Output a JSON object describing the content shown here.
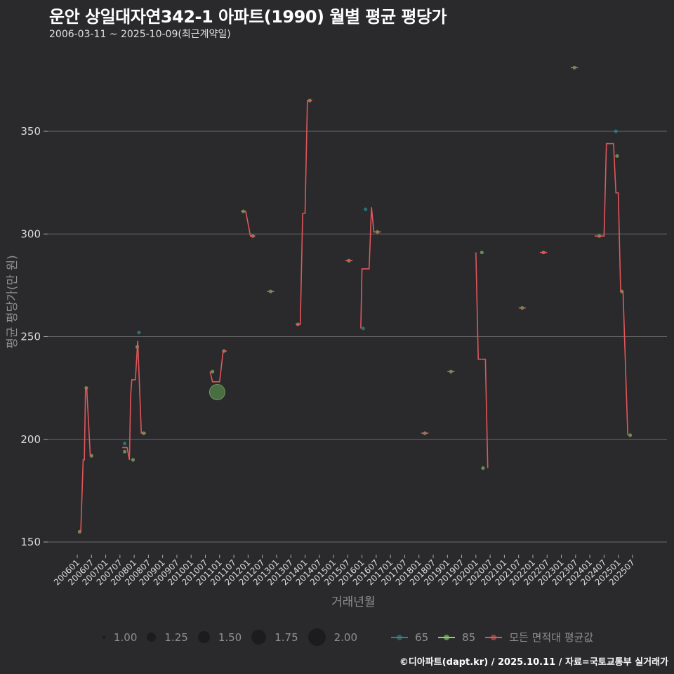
{
  "header": {
    "title": "운안 상일대자연342-1 아파트(1990) 월별 평균 평당가",
    "subtitle": "2006-03-11 ~ 2025-10-09(최근계약일)"
  },
  "axes": {
    "ylabel": "평균 평당가(만 원)",
    "xlabel": "거래년월"
  },
  "legend": {
    "size_items": [
      {
        "label": "1.00",
        "r": 2
      },
      {
        "label": "1.25",
        "r": 6
      },
      {
        "label": "1.50",
        "r": 8
      },
      {
        "label": "1.75",
        "r": 10
      },
      {
        "label": "2.00",
        "r": 12
      }
    ],
    "color_items": [
      {
        "label": "65",
        "color": "#2a8a87"
      },
      {
        "label": "85",
        "color": "#8ad46a"
      },
      {
        "label": "모든 면적대 평균값",
        "color": "#e0575b"
      }
    ]
  },
  "caption": "©디아파트(dapt.kr) / 2025.10.11 / 자료=국토교통부 실거래가",
  "colors": {
    "background": "#2a292b",
    "grid": "#6b6b6b",
    "avg_line": "#e0575b",
    "area65": "#2a8a87",
    "area85": "#7fb86a"
  },
  "chart_data": {
    "type": "line",
    "title": "운안 상일대자연342-1 아파트(1990) 월별 평균 평당가",
    "subtitle": "2006-03-11 ~ 2025-10-09(최근계약일)",
    "xlabel": "거래년월",
    "ylabel": "평균 평당가(만 원)",
    "ylim": [
      142,
      390
    ],
    "yticks": [
      150,
      200,
      250,
      300,
      350
    ],
    "grid": true,
    "legend_position": "bottom",
    "x_ticks": [
      "200601",
      "200607",
      "200701",
      "200707",
      "200801",
      "200807",
      "200901",
      "200907",
      "201001",
      "201007",
      "201101",
      "201107",
      "201201",
      "201207",
      "201301",
      "201307",
      "201401",
      "201407",
      "201501",
      "201507",
      "201601",
      "201607",
      "201701",
      "201707",
      "201801",
      "201807",
      "201901",
      "201907",
      "202001",
      "202007",
      "202101",
      "202107",
      "202201",
      "202207",
      "202301",
      "202307",
      "202401",
      "202407",
      "202501",
      "202507"
    ],
    "series": [
      {
        "name": "모든 면적대 평균값",
        "note": "month index: 0 = 2006-01",
        "points": [
          [
            0.5,
            155
          ],
          [
            1.5,
            155
          ],
          [
            2.5,
            190
          ],
          [
            3,
            190
          ],
          [
            3.5,
            225
          ],
          [
            4,
            225
          ],
          [
            5.5,
            192
          ],
          [
            6.5,
            192
          ],
          null,
          [
            19,
            196
          ],
          [
            21,
            196
          ],
          [
            22,
            190
          ],
          [
            22.5,
            221
          ],
          [
            23,
            229
          ],
          [
            24.5,
            229
          ],
          [
            25.5,
            248
          ],
          [
            27,
            203
          ],
          [
            29,
            203
          ],
          null,
          [
            56,
            233
          ],
          [
            57,
            228
          ],
          [
            60,
            228
          ],
          [
            61.5,
            243
          ],
          [
            63,
            243
          ],
          null,
          [
            69,
            311
          ],
          [
            71,
            311
          ],
          [
            73,
            299
          ],
          [
            75,
            299
          ],
          null,
          [
            80,
            272
          ],
          [
            83,
            272
          ],
          null,
          [
            92,
            256
          ],
          [
            94,
            256
          ],
          [
            95,
            310
          ],
          [
            96,
            310
          ],
          [
            97,
            365
          ],
          [
            99,
            365
          ],
          null,
          [
            113,
            287
          ],
          [
            116,
            287
          ],
          null,
          [
            119.5,
            254
          ],
          [
            120,
            283
          ],
          [
            123,
            283
          ],
          [
            124,
            313
          ],
          [
            125,
            301
          ],
          [
            128,
            301
          ],
          null,
          [
            145,
            203
          ],
          [
            148,
            203
          ],
          null,
          [
            156,
            233
          ],
          [
            159,
            233
          ],
          null,
          [
            168,
            291
          ],
          [
            169,
            239
          ],
          [
            172,
            239
          ],
          [
            173,
            186
          ],
          null,
          [
            186,
            264
          ],
          [
            189,
            264
          ],
          null,
          [
            195,
            291
          ],
          [
            198,
            291
          ],
          null,
          [
            208,
            381
          ],
          [
            211,
            381
          ],
          null,
          [
            218,
            299
          ],
          [
            222,
            299
          ],
          [
            223,
            344
          ],
          [
            226,
            344
          ],
          [
            227,
            320
          ],
          [
            228,
            320
          ],
          [
            229,
            272
          ],
          [
            230,
            272
          ],
          [
            232,
            202
          ]
        ]
      },
      {
        "name": "65",
        "points": [
          [
            20,
            198
          ],
          [
            26,
            252
          ],
          [
            120.5,
            254
          ],
          [
            121.5,
            312
          ],
          [
            227,
            350
          ]
        ]
      },
      {
        "name": "85",
        "points": [
          [
            1,
            155
          ],
          [
            3.8,
            225
          ],
          [
            6,
            192
          ],
          [
            20,
            194
          ],
          [
            23.5,
            190
          ],
          [
            25.3,
            245
          ],
          [
            28,
            203
          ],
          [
            57,
            233
          ],
          [
            61.8,
            243
          ],
          [
            70,
            311
          ],
          [
            74,
            299
          ],
          [
            81.5,
            272
          ],
          [
            93,
            256
          ],
          [
            98,
            365
          ],
          [
            114.5,
            287
          ],
          [
            126.5,
            301
          ],
          [
            146.5,
            203
          ],
          [
            157.5,
            233
          ],
          [
            170.5,
            291
          ],
          [
            171,
            186
          ],
          [
            187.5,
            264
          ],
          [
            196.5,
            291
          ],
          [
            209.5,
            381
          ],
          [
            220,
            299
          ],
          [
            227.5,
            338
          ],
          [
            229.5,
            272
          ],
          [
            233,
            202
          ]
        ],
        "large_point": {
          "x": 59,
          "y": 223,
          "size": 2.0
        }
      }
    ]
  }
}
